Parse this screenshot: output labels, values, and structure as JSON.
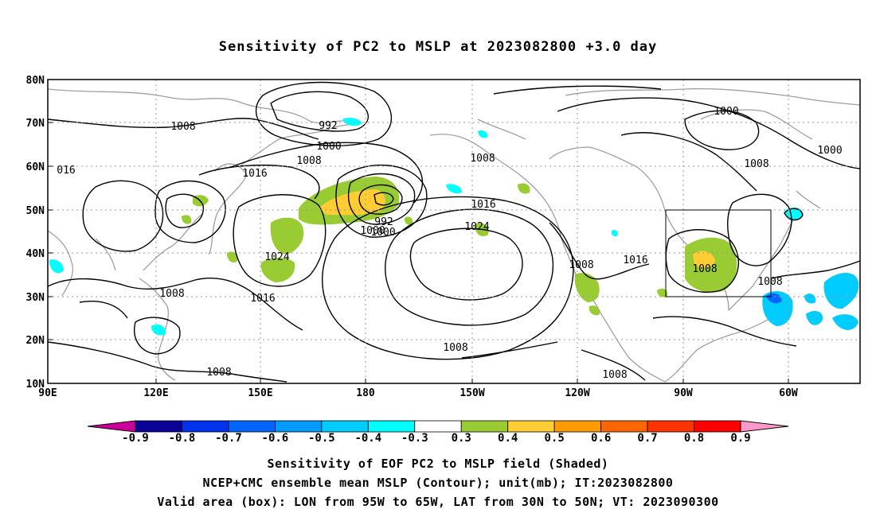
{
  "title": "Sensitivity of PC2 to MSLP at 2023082800 +3.0 day",
  "map": {
    "lat_labels": [
      "80N",
      "70N",
      "60N",
      "50N",
      "40N",
      "30N",
      "20N",
      "10N"
    ],
    "lon_labels": [
      "90E",
      "120E",
      "150E",
      "180",
      "150W",
      "120W",
      "90W",
      "60W"
    ],
    "lon_range": [
      "90E",
      "50W"
    ],
    "lat_range": [
      "10N",
      "80N"
    ],
    "contour_labels": [
      "1008",
      "992",
      "1000",
      "1000",
      "1008",
      "016",
      "1016",
      "1024",
      "992",
      "1000",
      "1008",
      "1016",
      "1024",
      "1008",
      "1008",
      "1008",
      "1016",
      "1016",
      "1008",
      "1008",
      "1008",
      "1000",
      "1008",
      "1008",
      "1000"
    ],
    "valid_box": {
      "lon_from": "95W",
      "lon_to": "65W",
      "lat_from": "30N",
      "lat_to": "50N"
    },
    "colors": {
      "contour": "#000000",
      "coastline": "#a0a0a0",
      "grid": "#999999"
    }
  },
  "colorbar": {
    "labels": [
      "-0.9",
      "-0.8",
      "-0.7",
      "-0.6",
      "-0.5",
      "-0.4",
      "-0.3",
      "0.3",
      "0.4",
      "0.5",
      "0.6",
      "0.7",
      "0.8",
      "0.9"
    ],
    "colors": [
      "#0a0099",
      "#0033ee",
      "#0066ff",
      "#0099ff",
      "#00ccff",
      "#00ffff",
      "#ffffff",
      "#99cc33",
      "#ffcc33",
      "#ff9900",
      "#ff6600",
      "#ff3300",
      "#ff0000"
    ],
    "low_end": "#cc0099",
    "high_end": "#ff99cc"
  },
  "footer": {
    "line1": "Sensitivity of EOF PC2 to MSLP field (Shaded)",
    "line2": "NCEP+CMC ensemble mean MSLP (Contour); unit(mb); IT:2023082800",
    "line3": "Valid area (box): LON from 95W to 65W, LAT from 30N to 50N; VT: 2023090300"
  }
}
